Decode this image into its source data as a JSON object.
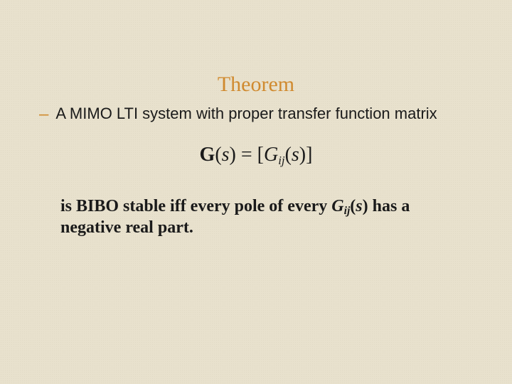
{
  "slide": {
    "background_color": "#e8e1cd",
    "texture_grain_color": "rgba(120,100,70,0.06)",
    "title": {
      "text": "Theorem",
      "color": "#d08a2f",
      "font_family": "Times New Roman",
      "font_size_pt": 22
    },
    "bullet": {
      "dash_color": "#d08a2f",
      "text": "A MIMO LTI system with proper transfer function matrix",
      "font_family": "Arial",
      "font_size_pt": 17,
      "font_weight": "normal"
    },
    "equation": {
      "G_bold": "G",
      "open": "(",
      "s": "s",
      "close_eq_open": ") = [",
      "Gij": "G",
      "sub": "ij",
      "open2": "(",
      "s2": "s",
      "close2": ")]",
      "font_family": "Times New Roman",
      "font_size_pt": 21,
      "color": "#1a1a1a"
    },
    "conclusion": {
      "pre": "is BIBO stable iff every pole of every ",
      "Gij": "G",
      "sub": "ij",
      "open": "(",
      "s": "s",
      "close": ")",
      "post": " has a negative real part.",
      "font_family": "Times New Roman",
      "font_size_pt": 18,
      "font_weight": "bold",
      "color": "#1a1a1a"
    }
  }
}
